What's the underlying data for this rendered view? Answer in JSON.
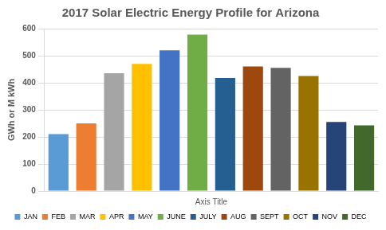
{
  "chart_data": {
    "type": "bar",
    "title": "2017 Solar Electric Energy Profile for Arizona",
    "x_label": "Axis Title",
    "y_label": "GWh or M kWh",
    "categories": [
      "JAN",
      "FEB",
      "MAR",
      "APR",
      "MAY",
      "JUNE",
      "JULY",
      "AUG",
      "SEPT",
      "OCT",
      "NOV",
      "DEC"
    ],
    "values": [
      210,
      250,
      435,
      470,
      520,
      578,
      418,
      460,
      455,
      425,
      255,
      243
    ],
    "colors": [
      "#5B9BD5",
      "#ED7D31",
      "#A5A5A5",
      "#FFC000",
      "#4472C4",
      "#70AD47",
      "#255E91",
      "#9E480E",
      "#636363",
      "#997300",
      "#264478",
      "#43682B"
    ],
    "ylim": [
      0,
      600
    ],
    "yticks": [
      0,
      100,
      200,
      300,
      400,
      500,
      600
    ],
    "grid": true,
    "legend": "bottom",
    "tick_labels": "y"
  }
}
